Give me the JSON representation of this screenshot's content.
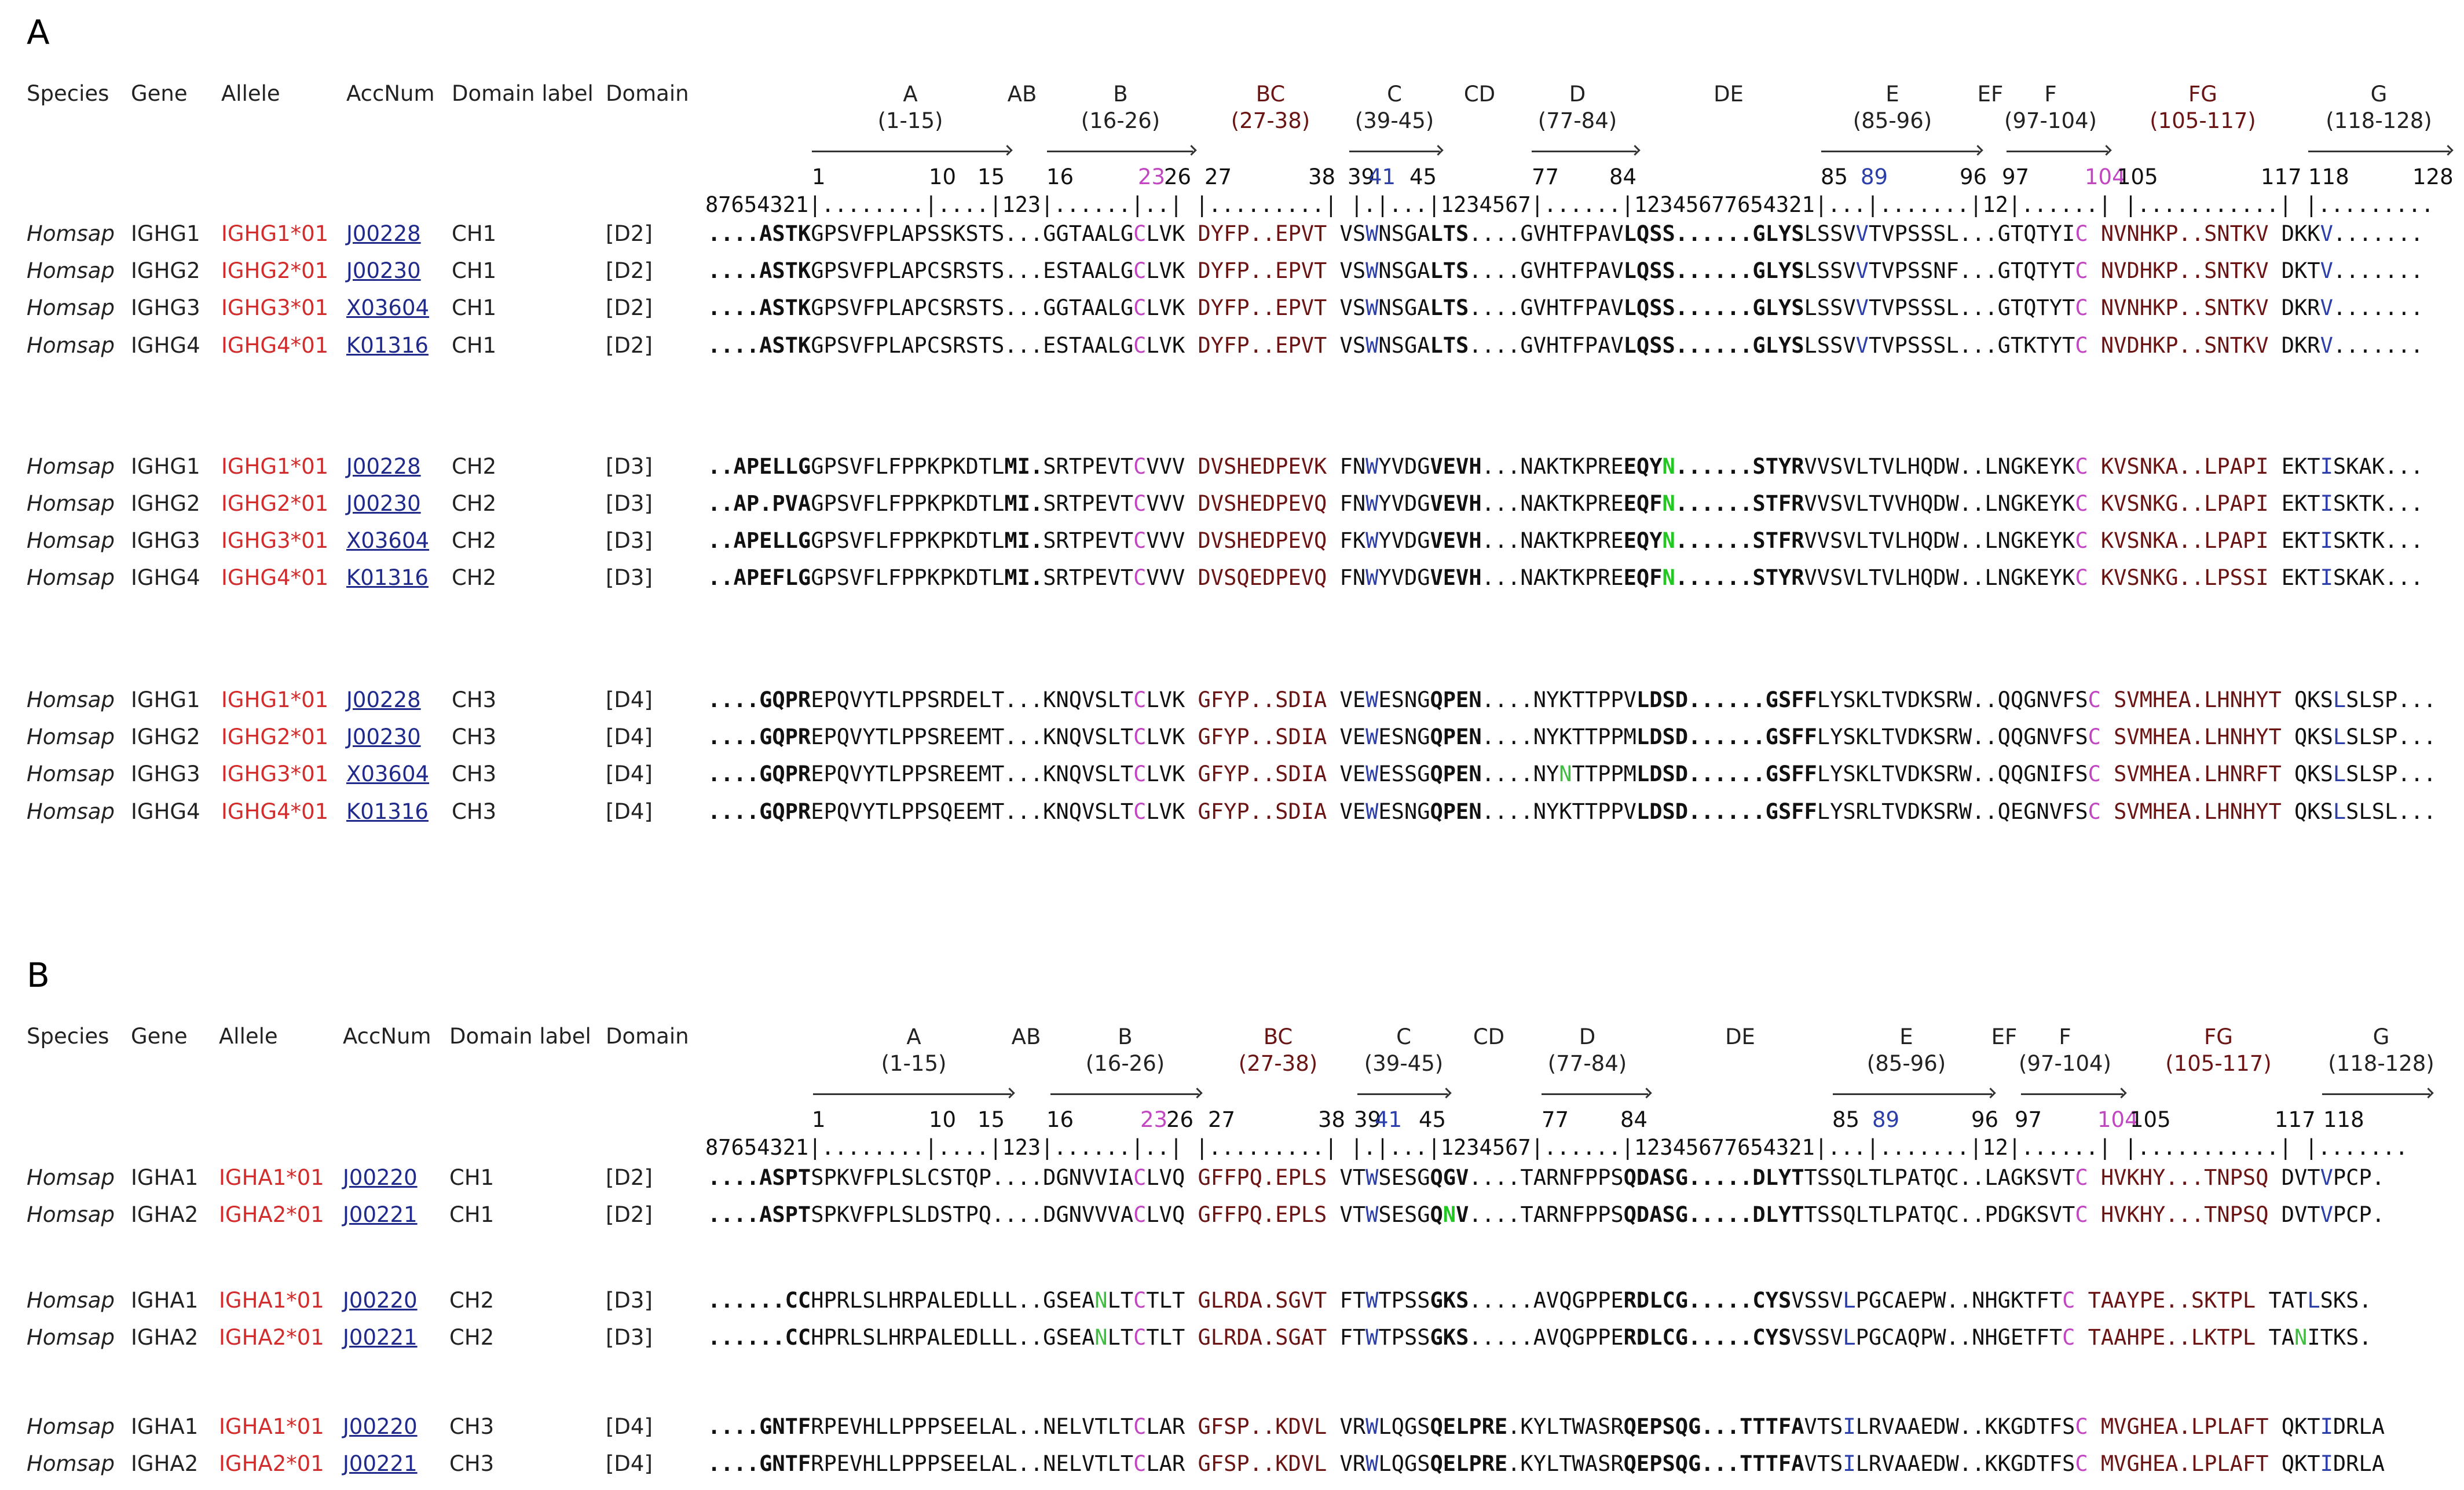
{
  "panels": [
    {
      "letter": "A",
      "headers": [
        "Species",
        "Gene",
        "Allele",
        "AccNum",
        "Domain label",
        "Domain"
      ],
      "regions": [
        {
          "name": "A",
          "range": "(1-15)",
          "hl": false
        },
        {
          "name": "AB",
          "range": "",
          "hl": false
        },
        {
          "name": "B",
          "range": "(16-26)",
          "hl": false
        },
        {
          "name": "BC",
          "range": "(27-38)",
          "hl": true
        },
        {
          "name": "C",
          "range": "(39-45)",
          "hl": false
        },
        {
          "name": "CD",
          "range": "",
          "hl": false
        },
        {
          "name": "D",
          "range": "(77-84)",
          "hl": false
        },
        {
          "name": "DE",
          "range": "",
          "hl": false
        },
        {
          "name": "E",
          "range": "(85-96)",
          "hl": false
        },
        {
          "name": "EF",
          "range": "",
          "hl": false
        },
        {
          "name": "F",
          "range": "(97-104)",
          "hl": false
        },
        {
          "name": "FG",
          "range": "(105-117)",
          "hl": true
        },
        {
          "name": "G",
          "range": "(118-128)",
          "hl": false
        }
      ],
      "positions": [
        {
          "t": "1",
          "c": ""
        },
        {
          "t": "10",
          "c": ""
        },
        {
          "t": "15",
          "c": ""
        },
        {
          "t": "16",
          "c": ""
        },
        {
          "t": "23",
          "c": "mag"
        },
        {
          "t": "26",
          "c": ""
        },
        {
          "t": "27",
          "c": ""
        },
        {
          "t": "38",
          "c": ""
        },
        {
          "t": "39",
          "c": ""
        },
        {
          "t": "41",
          "c": "blue"
        },
        {
          "t": "45",
          "c": ""
        },
        {
          "t": "77",
          "c": ""
        },
        {
          "t": "84",
          "c": ""
        },
        {
          "t": "85",
          "c": ""
        },
        {
          "t": "89",
          "c": "blue"
        },
        {
          "t": "96",
          "c": ""
        },
        {
          "t": "97",
          "c": ""
        },
        {
          "t": "104",
          "c": "mag"
        },
        {
          "t": "105",
          "c": ""
        },
        {
          "t": "117",
          "c": ""
        },
        {
          "t": "118",
          "c": ""
        },
        {
          "t": "128",
          "c": ""
        }
      ],
      "ruler": "87654321|........|....|123|......|..| |.........| |.|...|1234567|......|12345677654321|...|.......|12|......| |...........| |.........",
      "rows": [
        {
          "species": "Homsap",
          "gene": "IGHG1",
          "allele": "IGHG1*01",
          "acc": "J00228",
          "label": "CH1",
          "domain": "[D2]",
          "seq": "[b:....ASTK]GPSVFPLAPSSKSTS...GGTAALG[m:C]LVK [r:DYFP..EPVT] VS[u:W]NSGA[b:LTS]....GVHTFPAV[b:LQSS......GLYS]LSSV[u:V]TVPSSSL...GTQTYI[m:C] [r:NVNHKP..SNTKV] DKK[u:V]......."
        },
        {
          "species": "Homsap",
          "gene": "IGHG2",
          "allele": "IGHG2*01",
          "acc": "J00230",
          "label": "CH1",
          "domain": "[D2]",
          "seq": "[b:....ASTK]GPSVFPLAPCSRSTS...ESTAALG[m:C]LVK [r:DYFP..EPVT] VS[u:W]NSGA[b:LTS]....GVHTFPAV[b:LQSS......GLYS]LSSV[u:V]TVPSSNF...GTQTYT[m:C] [r:NVDHKP..SNTKV] DKT[u:V]......."
        },
        {
          "species": "Homsap",
          "gene": "IGHG3",
          "allele": "IGHG3*01",
          "acc": "X03604",
          "label": "CH1",
          "domain": "[D2]",
          "seq": "[b:....ASTK]GPSVFPLAPCSRSTS...GGTAALG[m:C]LVK [r:DYFP..EPVT] VS[u:W]NSGA[b:LTS]....GVHTFPAV[b:LQSS......GLYS]LSSV[u:V]TVPSSSL...GTQTYT[m:C] [r:NVNHKP..SNTKV] DKR[u:V]......."
        },
        {
          "species": "Homsap",
          "gene": "IGHG4",
          "allele": "IGHG4*01",
          "acc": "K01316",
          "label": "CH1",
          "domain": "[D2]",
          "seq": "[b:....ASTK]GPSVFPLAPCSRSTS...ESTAALG[m:C]LVK [r:DYFP..EPVT] VS[u:W]NSGA[b:LTS]....GVHTFPAV[b:LQSS......GLYS]LSSV[u:V]TVPSSSL...GTKTYT[m:C] [r:NVDHKP..SNTKV] DKR[u:V]......."
        },
        {
          "species": "Homsap",
          "gene": "IGHG1",
          "allele": "IGHG1*01",
          "acc": "J00228",
          "label": "CH2",
          "domain": "[D3]",
          "seq": "[b:..APELLG]GPSVFLFPPKPKDTL[b:MI.]SRTPEVT[m:C]VVV [r:DVSHEDPEVK] FN[u:W]YVDG[b:VEVH]...NAKTKPRE[b:EQY][g:N][b:......STYR]VVSVLTVLHQDW..LNGKEYK[m:C] [r:KVSNKA..LPAPI] EKT[u:I]SKAK..."
        },
        {
          "species": "Homsap",
          "gene": "IGHG2",
          "allele": "IGHG2*01",
          "acc": "J00230",
          "label": "CH2",
          "domain": "[D3]",
          "seq": "[b:..AP.PVA]GPSVFLFPPKPKDTL[b:MI.]SRTPEVT[m:C]VVV [r:DVSHEDPEVQ] FN[u:W]YVDG[b:VEVH]...NAKTKPRE[b:EQF][g:N][b:......STFR]VVSVLTVVHQDW..LNGKEYK[m:C] [r:KVSNKG..LPAPI] EKT[u:I]SKTK..."
        },
        {
          "species": "Homsap",
          "gene": "IGHG3",
          "allele": "IGHG3*01",
          "acc": "X03604",
          "label": "CH2",
          "domain": "[D3]",
          "seq": "[b:..APELLG]GPSVFLFPPKPKDTL[b:MI.]SRTPEVT[m:C]VVV [r:DVSHEDPEVQ] FK[u:W]YVDG[b:VEVH]...NAKTKPRE[b:EQY][g:N][b:......STFR]VVSVLTVLHQDW..LNGKEYK[m:C] [r:KVSNKA..LPAPI] EKT[u:I]SKTK..."
        },
        {
          "species": "Homsap",
          "gene": "IGHG4",
          "allele": "IGHG4*01",
          "acc": "K01316",
          "label": "CH2",
          "domain": "[D3]",
          "seq": "[b:..APEFLG]GPSVFLFPPKPKDTL[b:MI.]SRTPEVT[m:C]VVV [r:DVSQEDPEVQ] FN[u:W]YVDG[b:VEVH]...NAKTKPRE[b:EQF][g:N][b:......STYR]VVSVLTVLHQDW..LNGKEYK[m:C] [r:KVSNKG..LPSSI] EKT[u:I]SKAK..."
        },
        {
          "species": "Homsap",
          "gene": "IGHG1",
          "allele": "IGHG1*01",
          "acc": "J00228",
          "label": "CH3",
          "domain": "[D4]",
          "seq": "[b:....GQPR]EPQVYTLPPSRDELT...KNQVSLT[m:C]LVK [r:GFYP..SDIA] VE[u:W]ESNG[b:QPEN]....NYKTTPPV[b:LDSD......GSFF]LYSKLTVDKSRW..QQGNVFS[m:C] [r:SVMHEA.LHNHYT] QKS[u:L]SLSP..."
        },
        {
          "species": "Homsap",
          "gene": "IGHG2",
          "allele": "IGHG2*01",
          "acc": "J00230",
          "label": "CH3",
          "domain": "[D4]",
          "seq": "[b:....GQPR]EPQVYTLPPSREEMT...KNQVSLT[m:C]LVK [r:GFYP..SDIA] VE[u:W]ESNG[b:QPEN]....NYKTTPPM[b:LDSD......GSFF]LYSKLTVDKSRW..QQGNVFS[m:C] [r:SVMHEA.LHNHYT] QKS[u:L]SLSP..."
        },
        {
          "species": "Homsap",
          "gene": "IGHG3",
          "allele": "IGHG3*01",
          "acc": "X03604",
          "label": "CH3",
          "domain": "[D4]",
          "seq": "[b:....GQPR]EPQVYTLPPSREEMT...KNQVSLT[m:C]LVK [r:GFYP..SDIA] VE[u:W]ESSG[b:QPEN]....NY[lg:N]TTPPM[b:LDSD......GSFF]LYSKLTVDKSRW..QQGNIFS[m:C] [r:SVMHEA.LHNRFT] QKS[u:L]SLSP..."
        },
        {
          "species": "Homsap",
          "gene": "IGHG4",
          "allele": "IGHG4*01",
          "acc": "K01316",
          "label": "CH3",
          "domain": "[D4]",
          "seq": "[b:....GQPR]EPQVYTLPPSQEEMT...KNQVSLT[m:C]LVK [r:GFYP..SDIA] VE[u:W]ESNG[b:QPEN]....NYKTTPPV[b:LDSD......GSFF]LYSRLTVDKSRW..QEGNVFS[m:C] [r:SVMHEA.LHNHYT] QKS[u:L]SLSL..."
        }
      ]
    },
    {
      "letter": "B",
      "headers": [
        "Species",
        "Gene",
        "Allele",
        "AccNum",
        "Domain label",
        "Domain"
      ],
      "regions": [
        {
          "name": "A",
          "range": "(1-15)",
          "hl": false
        },
        {
          "name": "AB",
          "range": "",
          "hl": false
        },
        {
          "name": "B",
          "range": "(16-26)",
          "hl": false
        },
        {
          "name": "BC",
          "range": "(27-38)",
          "hl": true
        },
        {
          "name": "C",
          "range": "(39-45)",
          "hl": false
        },
        {
          "name": "CD",
          "range": "",
          "hl": false
        },
        {
          "name": "D",
          "range": "(77-84)",
          "hl": false
        },
        {
          "name": "DE",
          "range": "",
          "hl": false
        },
        {
          "name": "E",
          "range": "(85-96)",
          "hl": false
        },
        {
          "name": "EF",
          "range": "",
          "hl": false
        },
        {
          "name": "F",
          "range": "(97-104)",
          "hl": false
        },
        {
          "name": "FG",
          "range": "(105-117)",
          "hl": true
        },
        {
          "name": "G",
          "range": "(118-128)",
          "hl": false
        }
      ],
      "positions": [
        {
          "t": "1",
          "c": ""
        },
        {
          "t": "10",
          "c": ""
        },
        {
          "t": "15",
          "c": ""
        },
        {
          "t": "16",
          "c": ""
        },
        {
          "t": "23",
          "c": "mag"
        },
        {
          "t": "26",
          "c": ""
        },
        {
          "t": "27",
          "c": ""
        },
        {
          "t": "38",
          "c": ""
        },
        {
          "t": "39",
          "c": ""
        },
        {
          "t": "41",
          "c": "blue"
        },
        {
          "t": "45",
          "c": ""
        },
        {
          "t": "77",
          "c": ""
        },
        {
          "t": "84",
          "c": ""
        },
        {
          "t": "85",
          "c": ""
        },
        {
          "t": "89",
          "c": "blue"
        },
        {
          "t": "96",
          "c": ""
        },
        {
          "t": "97",
          "c": ""
        },
        {
          "t": "104",
          "c": "mag"
        },
        {
          "t": "105",
          "c": ""
        },
        {
          "t": "117",
          "c": ""
        },
        {
          "t": "118",
          "c": ""
        }
      ],
      "ruler": "87654321|........|....|123|......|..| |.........| |.|...|1234567|......|12345677654321|...|.......|12|......| |...........| |.......",
      "rows": [
        {
          "species": "Homsap",
          "gene": "IGHA1",
          "allele": "IGHA1*01",
          "acc": "J00220",
          "label": "CH1",
          "domain": "[D2]",
          "seq": "[b:....ASPT]SPKVFPLSLCSTQP....DGNVVIA[m:C]LVQ [r:GFFPQ.EPLS] VT[u:W]SESG[b:QGV]....TARNFPPS[b:QDASG.....DLYT]TSSQLTLPATQC..LAGKSVT[m:C] [r:HVKHY...TNPSQ] DVT[u:V]PCP."
        },
        {
          "species": "Homsap",
          "gene": "IGHA2",
          "allele": "IGHA2*01",
          "acc": "J00221",
          "label": "CH1",
          "domain": "[D2]",
          "seq": "[b:....ASPT]SPKVFPLSLDSTPQ....DGNVVVA[m:C]LVQ [r:GFFPQ.EPLS] VT[u:W]SESG[b:Q][g:N][b:V]....TARNFPPS[b:QDASG.....DLYT]TSSQLTLPATQC..PDGKSVT[m:C] [r:HVKHY...TNPSQ] DVT[u:V]PCP."
        },
        {
          "species": "Homsap",
          "gene": "IGHA1",
          "allele": "IGHA1*01",
          "acc": "J00220",
          "label": "CH2",
          "domain": "[D3]",
          "seq": "[b:......CC]HPRLSLHRPALEDLLL..GSEA[lg:N]LT[m:C]TLT [r:GLRDA.SGVT] FT[u:W]TPSS[b:GKS].....AVQGPPE[b:RDLCG.....CYS]VSSV[u:L]PGCAEPW..NHGKTFT[m:C] [r:TAAYPE..SKTPL] TAT[u:L]SKS."
        },
        {
          "species": "Homsap",
          "gene": "IGHA2",
          "allele": "IGHA2*01",
          "acc": "J00221",
          "label": "CH2",
          "domain": "[D3]",
          "seq": "[b:......CC]HPRLSLHRPALEDLLL..GSEA[lg:N]LT[m:C]TLT [r:GLRDA.SGAT] FT[u:W]TPSS[b:GKS].....AVQGPPE[b:RDLCG.....CYS]VSSV[u:L]PGCAQPW..NHGETFT[m:C] [r:TAAHPE..LKTPL] TA[lg:N]ITKS."
        },
        {
          "species": "Homsap",
          "gene": "IGHA1",
          "allele": "IGHA1*01",
          "acc": "J00220",
          "label": "CH3",
          "domain": "[D4]",
          "seq": "[b:....GNTF]RPEVHLLPPPSEELAL..NELVTLT[m:C]LAR [r:GFSP..KDVL] VR[u:W]LQGS[b:QELPRE].KYLTWASR[b:QEPSQG...TTTFA]VTS[u:I]LRVAAEDW..KKGDTFS[m:C] [r:MVGHEA.LPLAFT] QKT[u:I]DRLA"
        },
        {
          "species": "Homsap",
          "gene": "IGHA2",
          "allele": "IGHA2*01",
          "acc": "J00221",
          "label": "CH3",
          "domain": "[D4]",
          "seq": "[b:....GNTF]RPEVHLLPPPSEELAL..NELVTLT[m:C]LAR [r:GFSP..KDVL] VR[u:W]LQGS[b:QELPRE].KYLTWASR[b:QEPSQG...TTTFA]VTS[u:I]LRVAAEDW..KKGDTFS[m:C] [r:MVGHEA.LPLAFT] QKT[u:I]DRLA"
        }
      ]
    }
  ]
}
